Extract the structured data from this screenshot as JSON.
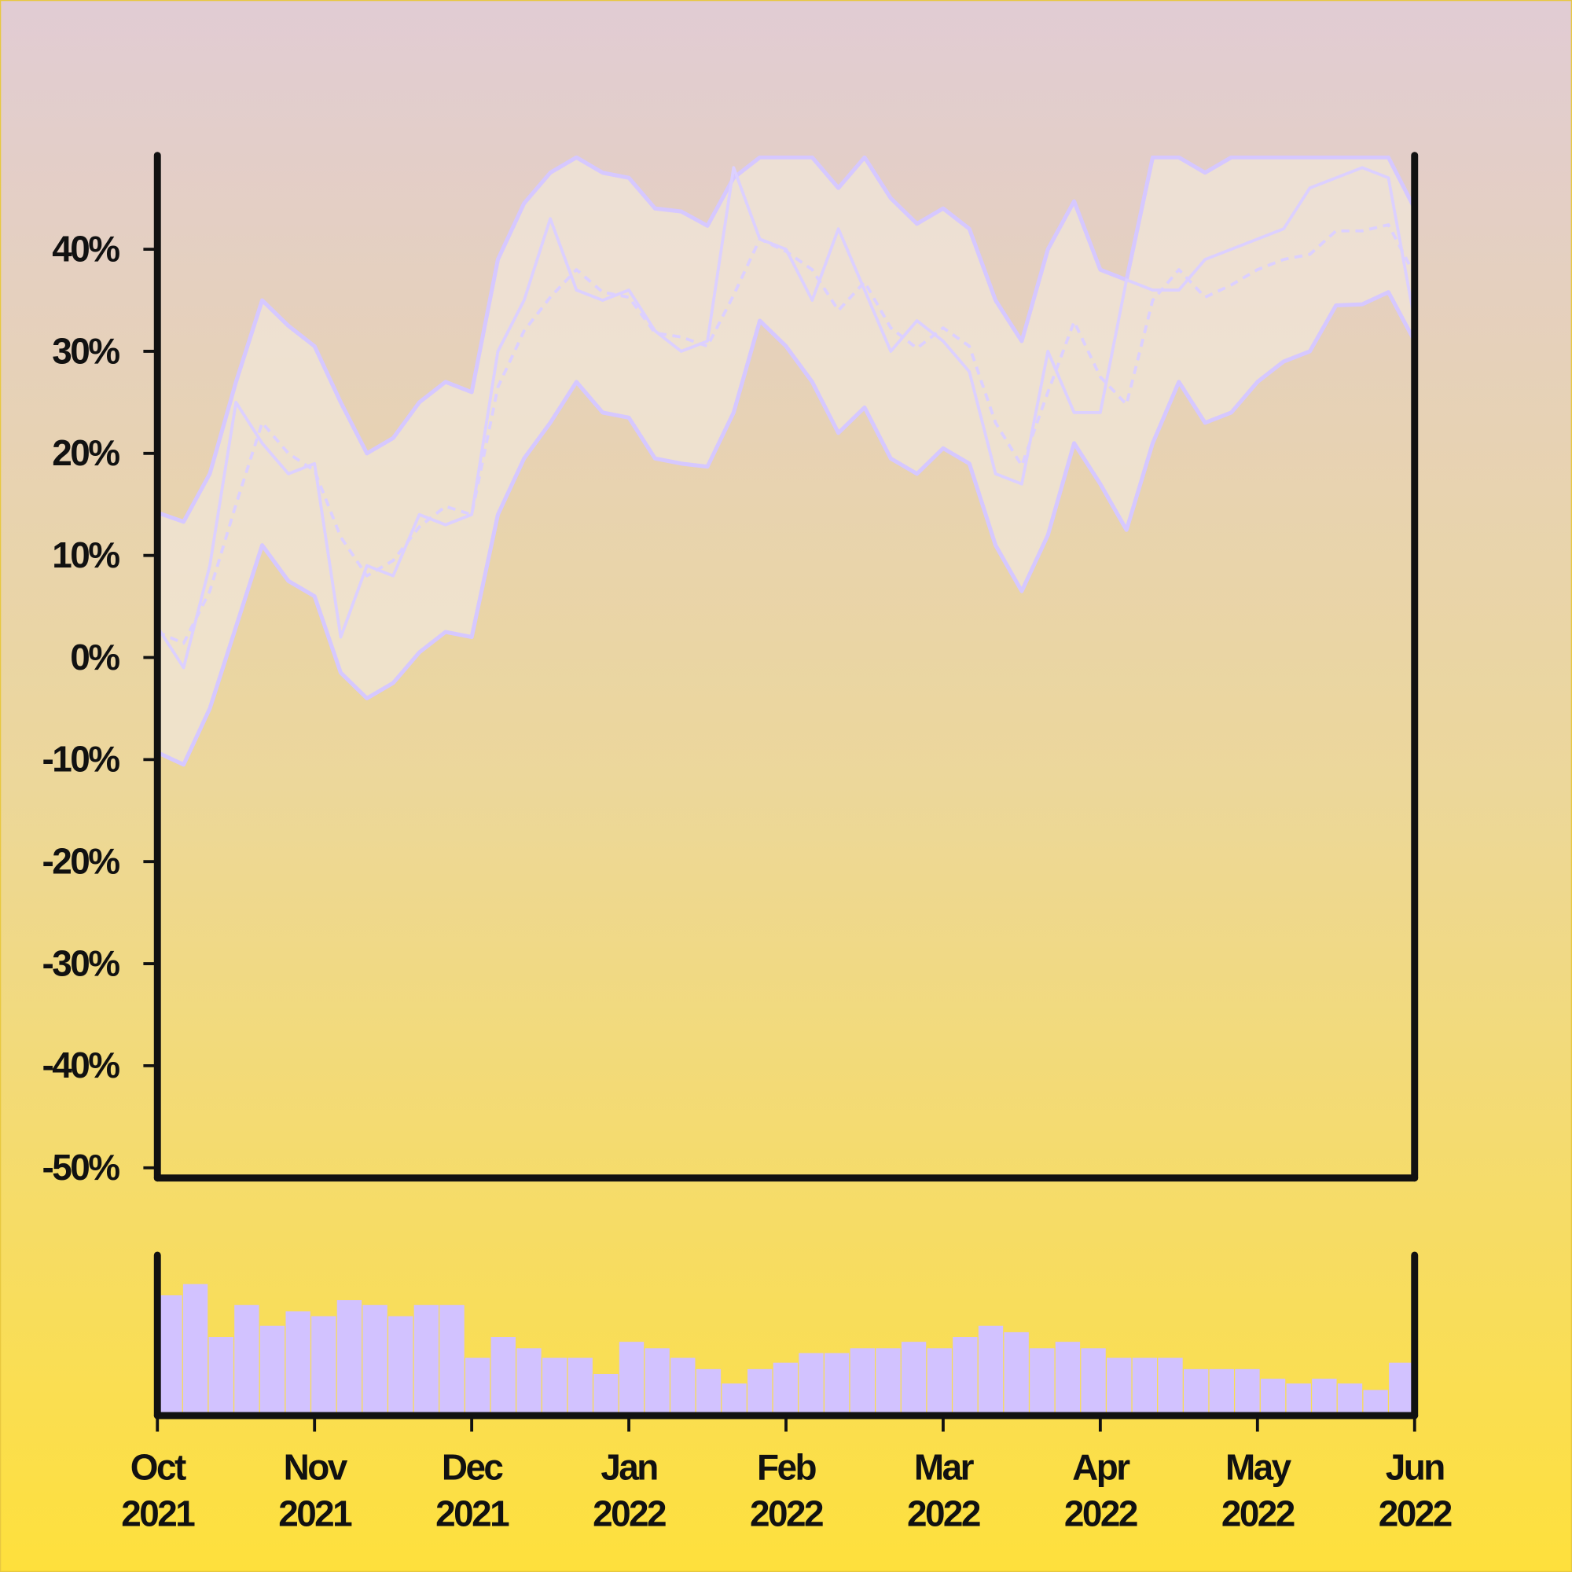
{
  "chart_data": {
    "type": "line",
    "ylim": [
      -51,
      49
    ],
    "yticks": [
      {
        "value": -50,
        "label": "-50%"
      },
      {
        "value": -40,
        "label": "-40%"
      },
      {
        "value": -30,
        "label": "-30%"
      },
      {
        "value": -20,
        "label": "-20%"
      },
      {
        "value": -10,
        "label": "-10%"
      },
      {
        "value": 0,
        "label": "0%"
      },
      {
        "value": 10,
        "label": "10%"
      },
      {
        "value": 20,
        "label": "20%"
      },
      {
        "value": 30,
        "label": "30%"
      },
      {
        "value": 40,
        "label": "40%"
      }
    ],
    "xtick_labels": [
      "Oct 2021",
      "Nov 2021",
      "Dec 2021",
      "Jan 2022",
      "Feb 2022",
      "Mar 2022",
      "Apr 2022",
      "May 2022",
      "Jun 2022"
    ],
    "band_fill": "#f0e6d8",
    "series": [
      {
        "color": "#dcd0ff",
        "style": "solid",
        "width": 3,
        "values": [
          3,
          -1,
          9,
          25,
          21,
          18,
          19,
          2,
          9,
          8,
          14,
          13,
          14,
          30,
          35,
          43,
          36,
          35,
          36,
          32,
          30,
          31,
          48,
          41,
          40,
          35,
          42,
          36,
          30,
          33,
          31,
          28,
          18,
          17,
          30,
          24,
          24,
          37,
          36,
          36,
          39,
          40,
          41,
          42,
          46,
          47,
          48,
          47,
          33
        ]
      },
      {
        "color": "#dcd0ff",
        "style": "dashed",
        "width": 3,
        "values": [
          2.5,
          1.4,
          6.5,
          15,
          23,
          20,
          18.3,
          11.8,
          8,
          9.5,
          12.8,
          14.8,
          14,
          26.5,
          32,
          35.3,
          38,
          35.8,
          35.3,
          31.8,
          31.4,
          30.5,
          35.5,
          41,
          39.8,
          38,
          34,
          36.8,
          32.3,
          30.3,
          32.3,
          30.5,
          23,
          18.8,
          26,
          32.9,
          27.5,
          24.8,
          35,
          38,
          35.3,
          36.5,
          38,
          39,
          39.5,
          41.8,
          41.8,
          42.4,
          37.5
        ]
      },
      {
        "color": "#d6c8ff",
        "style": "solid",
        "width": 4,
        "values": [
          14.2,
          13.3,
          18,
          27,
          35,
          32.5,
          30.5,
          25,
          20,
          21.5,
          25,
          27,
          26,
          39,
          44.5,
          47.5,
          49,
          47.5,
          47,
          44,
          43.7,
          42.3,
          47,
          49,
          49,
          49,
          46,
          49,
          45,
          42.5,
          44,
          42,
          35,
          31,
          40,
          44.7,
          38,
          37,
          49,
          49,
          47.5,
          49,
          49,
          49,
          49,
          49,
          49,
          49,
          44
        ]
      },
      {
        "color": "#d6c8ff",
        "style": "solid",
        "width": 4,
        "values": [
          -9.3,
          -10.5,
          -5,
          3,
          11,
          7.5,
          6,
          -1.5,
          -4,
          -2.5,
          0.5,
          2.5,
          2,
          14,
          19.5,
          23,
          27,
          24,
          23.5,
          19.5,
          19,
          18.7,
          24,
          33,
          30.5,
          27,
          22,
          24.5,
          19.5,
          18,
          20.5,
          19,
          11,
          6.5,
          12,
          21,
          17,
          12.5,
          21,
          27,
          23,
          24,
          27,
          29,
          30,
          34.5,
          34.6,
          35.8,
          31
        ]
      }
    ],
    "volume": {
      "type": "bar",
      "color": "#d2c2ff",
      "ylim": [
        0,
        100
      ],
      "values": [
        75,
        82,
        49,
        69,
        56,
        65,
        62,
        72,
        69,
        62,
        69,
        69,
        36,
        49,
        42,
        36,
        36,
        26,
        46,
        42,
        36,
        29,
        20,
        29,
        33,
        39,
        39,
        42,
        42,
        46,
        42,
        49,
        56,
        52,
        42,
        46,
        42,
        36,
        36,
        36,
        29,
        29,
        29,
        23,
        20,
        23,
        20,
        16,
        33
      ]
    }
  }
}
